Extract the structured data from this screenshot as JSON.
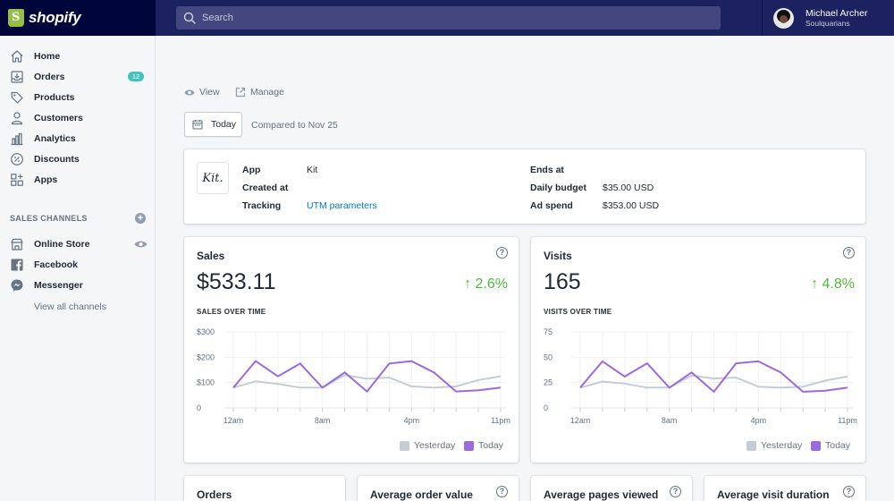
{
  "brand": {
    "name": "shopify"
  },
  "search": {
    "placeholder": "Search"
  },
  "user": {
    "name": "Michael Archer",
    "org": "Soulquarians"
  },
  "sidebar": {
    "items": [
      {
        "label": "Home",
        "icon": "home-icon"
      },
      {
        "label": "Orders",
        "icon": "orders-icon",
        "badge": "12"
      },
      {
        "label": "Products",
        "icon": "tag-icon"
      },
      {
        "label": "Customers",
        "icon": "person-icon"
      },
      {
        "label": "Analytics",
        "icon": "bar-chart-icon"
      },
      {
        "label": "Discounts",
        "icon": "discount-icon"
      },
      {
        "label": "Apps",
        "icon": "apps-icon"
      }
    ],
    "section_title": "SALES CHANNELS",
    "channels": [
      {
        "label": "Online Store",
        "icon": "store-icon"
      },
      {
        "label": "Facebook",
        "icon": "facebook-icon"
      },
      {
        "label": "Messenger",
        "icon": "messenger-icon"
      }
    ],
    "view_all": "View all channels"
  },
  "actions": {
    "view": "View",
    "manage": "Manage"
  },
  "date_filter": {
    "label": "Today",
    "compared": "Compared to Nov 25"
  },
  "campaign": {
    "logo_text": "Kit.",
    "app_label": "App",
    "app_value": "Kit",
    "created_label": "Created at",
    "created_value": "",
    "tracking_label": "Tracking",
    "tracking_value": "UTM parameters",
    "ends_label": "Ends at",
    "ends_value": "",
    "budget_label": "Daily budget",
    "budget_value": "$35.00 USD",
    "spend_label": "Ad spend",
    "spend_value": "$353.00 USD"
  },
  "colors": {
    "today": "#9c6ade",
    "yesterday": "#c4cdd5",
    "positive": "#50b83c",
    "link": "#007ace"
  },
  "sales": {
    "title": "Sales",
    "value": "$533.11",
    "change": "↑ 2.6%",
    "subtitle": "SALES OVER TIME",
    "legend_yesterday": "Yesterday",
    "legend_today": "Today"
  },
  "visits": {
    "title": "Visits",
    "value": "165",
    "change": "↑ 4.8%",
    "subtitle": "VISITS OVER TIME",
    "legend_yesterday": "Yesterday",
    "legend_today": "Today"
  },
  "bottom_cards": [
    {
      "title": "Orders"
    },
    {
      "title": "Average order value"
    },
    {
      "title": "Average pages viewed"
    },
    {
      "title": "Average visit duration"
    }
  ],
  "chart_data": [
    {
      "type": "line",
      "title": "SALES OVER TIME",
      "x": [
        "12am",
        "",
        "",
        "",
        "8am",
        "",
        "",
        "",
        "4pm",
        "",
        "",
        "",
        "11pm"
      ],
      "x_ticks": [
        "12am",
        "8am",
        "4pm",
        "11pm"
      ],
      "y_ticks": [
        "$300",
        "$200",
        "$100",
        "0"
      ],
      "ylim": [
        0,
        300
      ],
      "series": [
        {
          "name": "Yesterday",
          "color": "#c4cdd5",
          "values": [
            80,
            105,
            95,
            80,
            80,
            130,
            115,
            120,
            85,
            80,
            85,
            110,
            125
          ]
        },
        {
          "name": "Today",
          "color": "#9c6ade",
          "values": [
            80,
            185,
            125,
            175,
            80,
            140,
            65,
            175,
            185,
            140,
            65,
            70,
            80
          ]
        }
      ],
      "legend": "bottom-right"
    },
    {
      "type": "line",
      "title": "VISITS OVER TIME",
      "x": [
        "12am",
        "",
        "",
        "",
        "8am",
        "",
        "",
        "",
        "4pm",
        "",
        "",
        "",
        "11pm"
      ],
      "x_ticks": [
        "12am",
        "8am",
        "4pm",
        "11pm"
      ],
      "y_ticks": [
        "75",
        "50",
        "25",
        "0"
      ],
      "ylim": [
        0,
        75
      ],
      "series": [
        {
          "name": "Yesterday",
          "color": "#c4cdd5",
          "values": [
            20,
            26,
            24,
            20,
            20,
            32,
            29,
            30,
            21,
            20,
            21,
            27,
            31
          ]
        },
        {
          "name": "Today",
          "color": "#9c6ade",
          "values": [
            20,
            46,
            31,
            44,
            20,
            35,
            16,
            44,
            46,
            35,
            16,
            17,
            20
          ]
        }
      ],
      "legend": "bottom-right"
    }
  ]
}
